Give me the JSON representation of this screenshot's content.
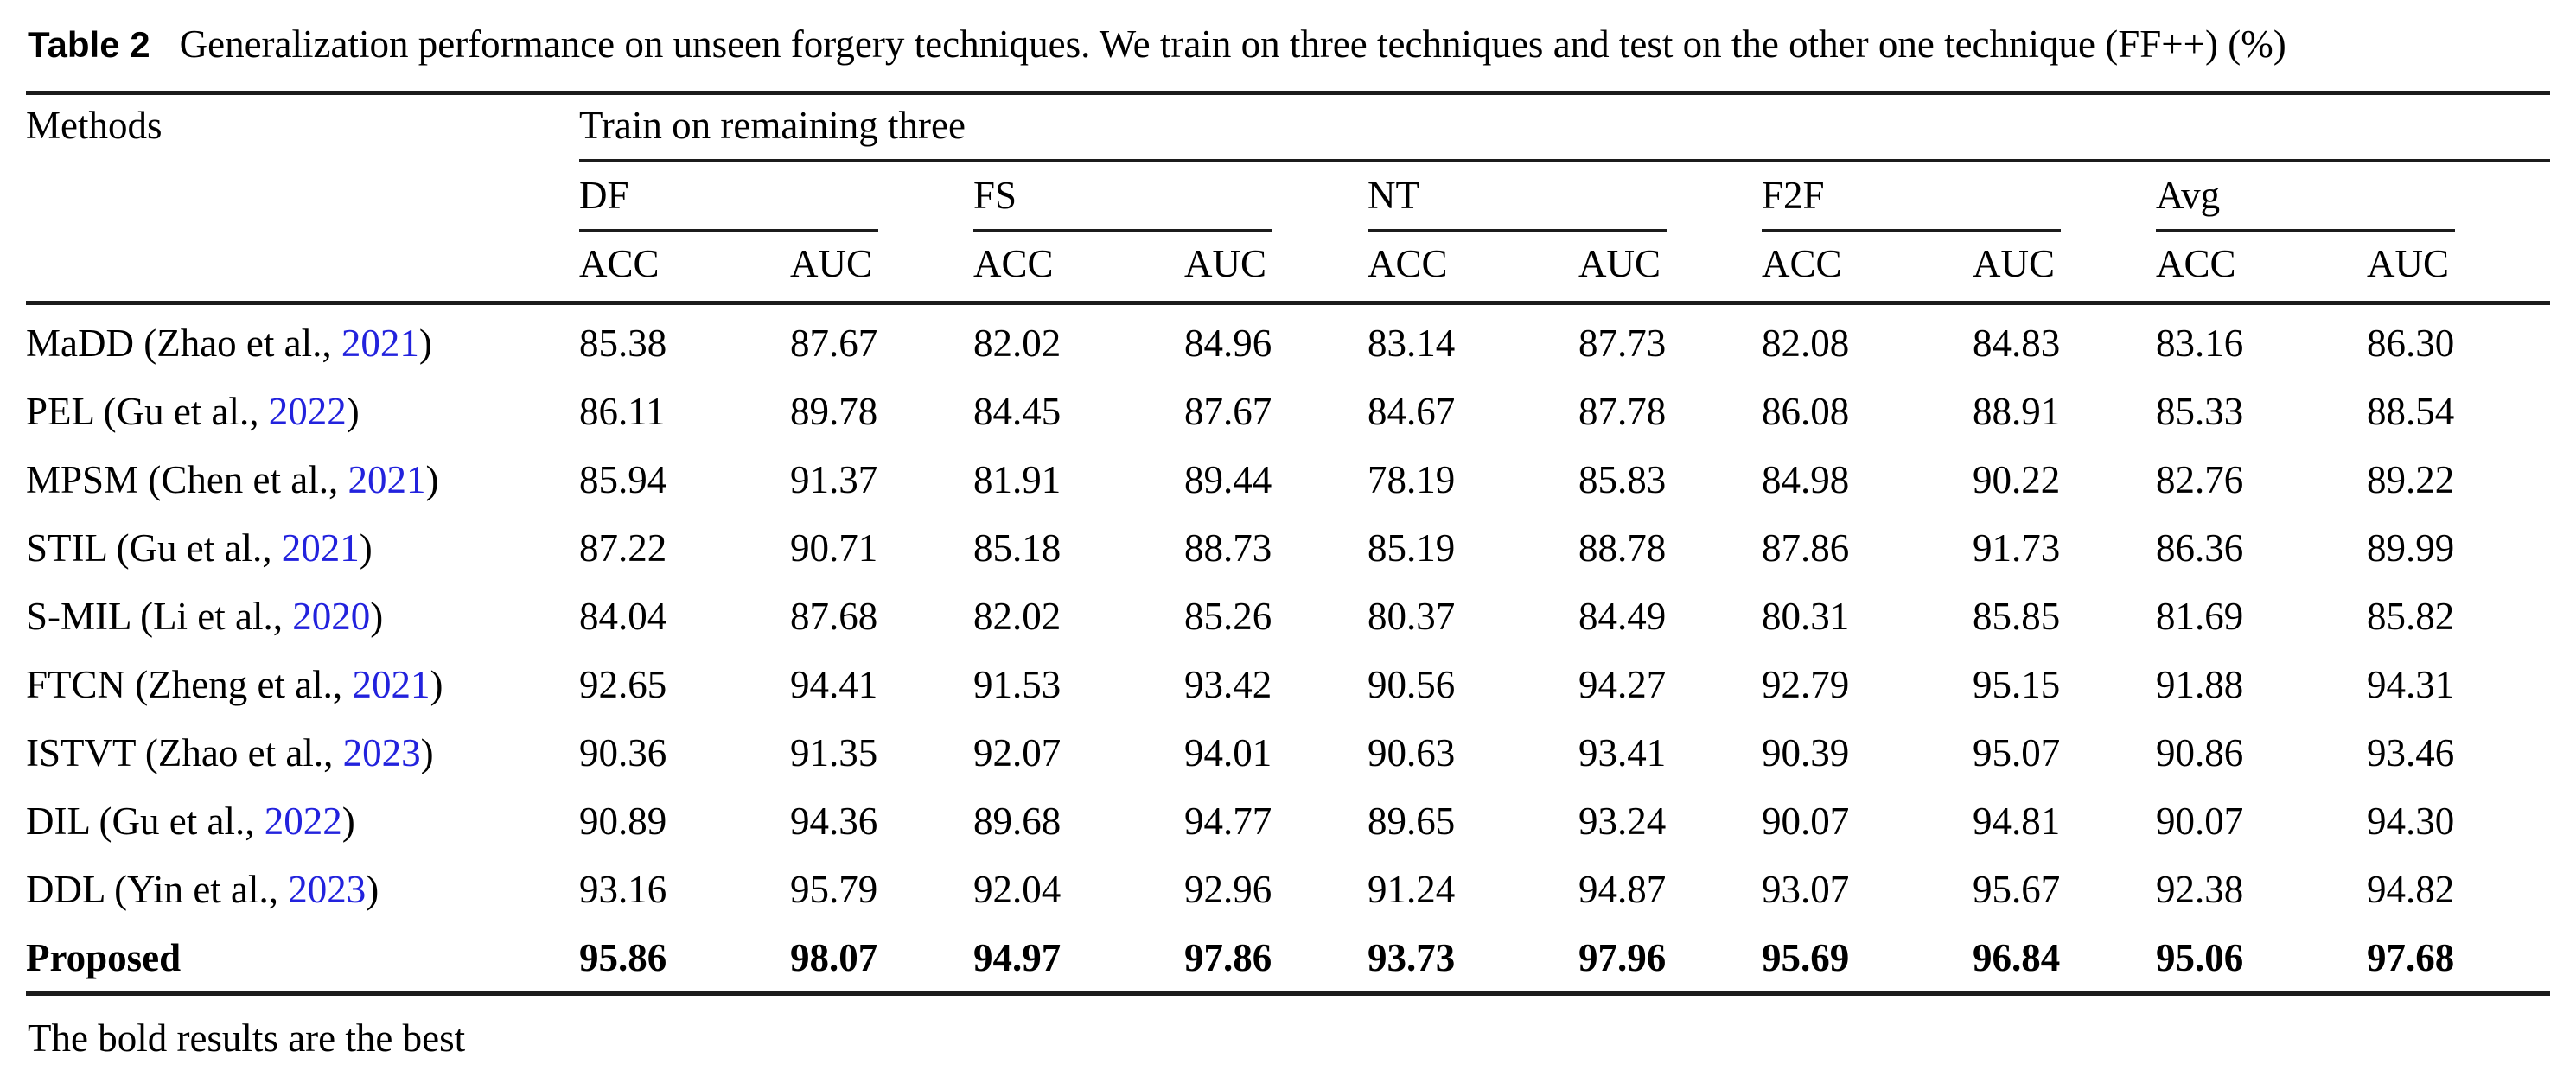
{
  "caption": {
    "label": "Table 2",
    "text": "Generalization performance on unseen forgery techniques. We train on three techniques and test on the other one technique (FF++) (%)"
  },
  "table": {
    "methods_header": "Methods",
    "span_header": "Train on remaining three",
    "groups": [
      "DF",
      "FS",
      "NT",
      "F2F",
      "Avg"
    ],
    "sub_metrics": [
      "ACC",
      "AUC"
    ],
    "rows": [
      {
        "method_pre": "MaDD (Zhao et al., ",
        "year": "2021",
        "method_post": ")",
        "bold": false,
        "values": [
          "85.38",
          "87.67",
          "82.02",
          "84.96",
          "83.14",
          "87.73",
          "82.08",
          "84.83",
          "83.16",
          "86.30"
        ]
      },
      {
        "method_pre": "PEL (Gu et al., ",
        "year": "2022",
        "method_post": ")",
        "bold": false,
        "values": [
          "86.11",
          "89.78",
          "84.45",
          "87.67",
          "84.67",
          "87.78",
          "86.08",
          "88.91",
          "85.33",
          "88.54"
        ]
      },
      {
        "method_pre": "MPSM (Chen et al., ",
        "year": "2021",
        "method_post": ")",
        "bold": false,
        "values": [
          "85.94",
          "91.37",
          "81.91",
          "89.44",
          "78.19",
          "85.83",
          "84.98",
          "90.22",
          "82.76",
          "89.22"
        ]
      },
      {
        "method_pre": "STIL (Gu et al., ",
        "year": "2021",
        "method_post": ")",
        "bold": false,
        "values": [
          "87.22",
          "90.71",
          "85.18",
          "88.73",
          "85.19",
          "88.78",
          "87.86",
          "91.73",
          "86.36",
          "89.99"
        ]
      },
      {
        "method_pre": "S-MIL (Li et al., ",
        "year": "2020",
        "method_post": ")",
        "bold": false,
        "values": [
          "84.04",
          "87.68",
          "82.02",
          "85.26",
          "80.37",
          "84.49",
          "80.31",
          "85.85",
          "81.69",
          "85.82"
        ]
      },
      {
        "method_pre": "FTCN (Zheng et al., ",
        "year": "2021",
        "method_post": ")",
        "bold": false,
        "values": [
          "92.65",
          "94.41",
          "91.53",
          "93.42",
          "90.56",
          "94.27",
          "92.79",
          "95.15",
          "91.88",
          "94.31"
        ]
      },
      {
        "method_pre": "ISTVT (Zhao et al., ",
        "year": "2023",
        "method_post": ")",
        "bold": false,
        "values": [
          "90.36",
          "91.35",
          "92.07",
          "94.01",
          "90.63",
          "93.41",
          "90.39",
          "95.07",
          "90.86",
          "93.46"
        ]
      },
      {
        "method_pre": "DIL (Gu et al., ",
        "year": "2022",
        "method_post": ")",
        "bold": false,
        "values": [
          "90.89",
          "94.36",
          "89.68",
          "94.77",
          "89.65",
          "93.24",
          "90.07",
          "94.81",
          "90.07",
          "94.30"
        ]
      },
      {
        "method_pre": "DDL (Yin et al., ",
        "year": "2023",
        "method_post": ")",
        "bold": false,
        "values": [
          "93.16",
          "95.79",
          "92.04",
          "92.96",
          "91.24",
          "94.87",
          "93.07",
          "95.67",
          "92.38",
          "94.82"
        ]
      },
      {
        "method_pre": "Proposed",
        "year": "",
        "method_post": "",
        "bold": true,
        "values": [
          "95.86",
          "98.07",
          "94.97",
          "97.86",
          "93.73",
          "97.96",
          "95.69",
          "96.84",
          "95.06",
          "97.68"
        ]
      }
    ]
  },
  "footnote": "The bold results are the best",
  "colors": {
    "citation_blue": "#2222DD",
    "text": "#000000",
    "rule": "#1c1c1c"
  }
}
